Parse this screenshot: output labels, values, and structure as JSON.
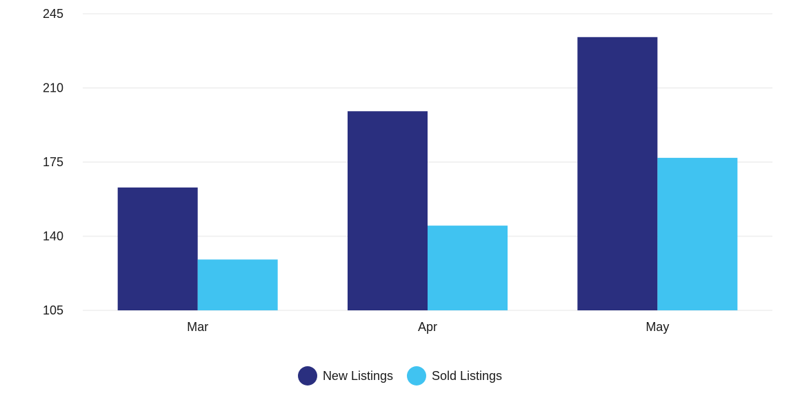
{
  "chart_data": {
    "type": "bar",
    "categories": [
      "Mar",
      "Apr",
      "May"
    ],
    "series": [
      {
        "name": "New Listings",
        "values": [
          163,
          199,
          234
        ],
        "color": "#2a2f7f"
      },
      {
        "name": "Sold Listings",
        "values": [
          129,
          145,
          177
        ],
        "color": "#40c3f1"
      }
    ],
    "yticks": [
      105,
      140,
      175,
      210,
      245
    ],
    "ylim": [
      105,
      245
    ],
    "title": "",
    "xlabel": "",
    "ylabel": "",
    "grid": true,
    "legend_position": "bottom"
  }
}
